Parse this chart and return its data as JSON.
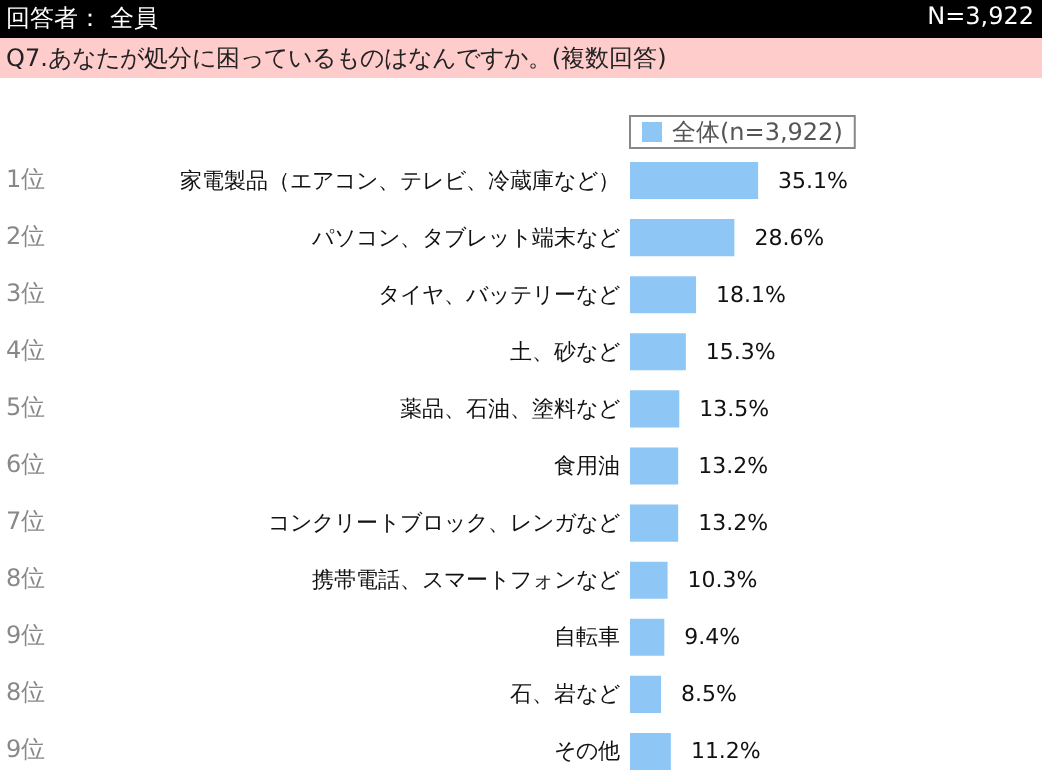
{
  "chart_data": {
    "type": "bar",
    "orientation": "horizontal",
    "title": "回答者： 全員",
    "subtitle": "Q7.あなたが処分に困っているものはなんですか。(複数回答)",
    "categories": [
      "家電製品（エアコン、テレビ、冷蔵庫など）",
      "パソコン、タブレット端末など",
      "タイヤ、バッテリーなど",
      "土、砂など",
      "薬品、石油、塗料など",
      "食用油",
      "コンクリートブロック、レンガなど",
      "携帯電話、スマートフォンなど",
      "自転車",
      "石、岩など",
      "その他"
    ],
    "series": [
      {
        "name": "全体(n=3,922)",
        "color": "#8ec6f6",
        "values": [
          35.1,
          28.6,
          18.1,
          15.3,
          13.5,
          13.2,
          13.2,
          10.3,
          9.4,
          8.5,
          11.2
        ],
        "value_labels": [
          "35.1%",
          "28.6%",
          "18.1%",
          "15.3%",
          "13.5%",
          "13.2%",
          "13.2%",
          "10.3%",
          "9.4%",
          "8.5%",
          "11.2%"
        ]
      }
    ],
    "annotations": [
      "N=3,922",
      "1位",
      "2位",
      "3位",
      "4位",
      "5位",
      "6位",
      "7位",
      "8位",
      "9位",
      "8位",
      "9位"
    ],
    "legend": "top",
    "grid": false,
    "tick_labels": "y"
  }
}
